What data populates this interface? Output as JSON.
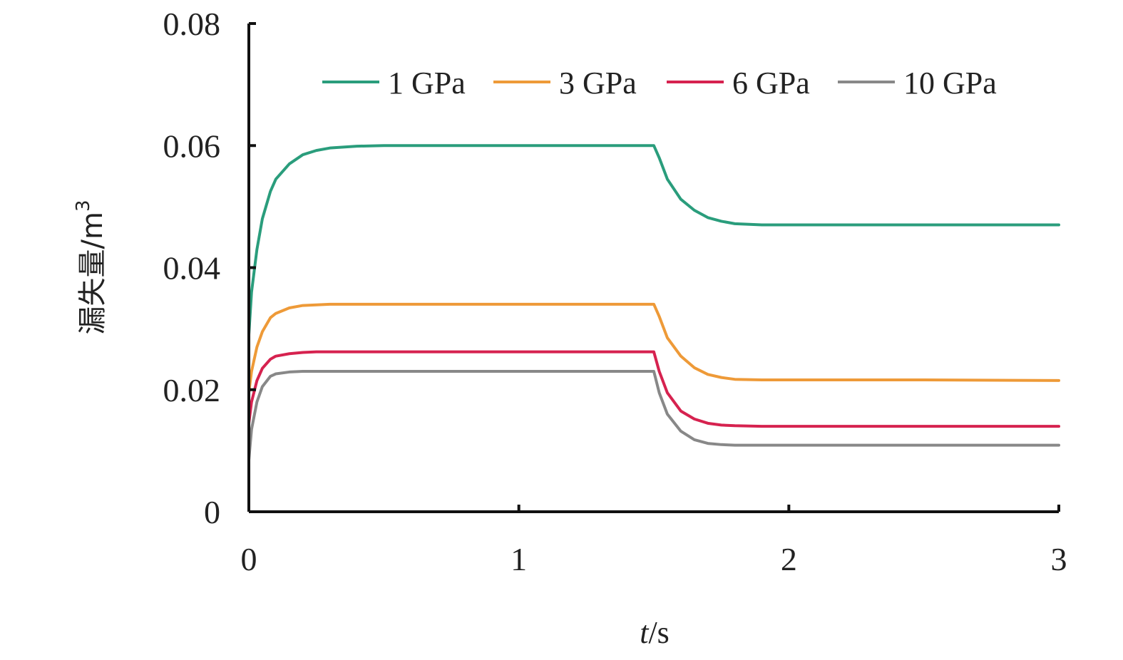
{
  "chart_data": {
    "type": "line",
    "xlabel_italic": "t",
    "xlabel_unit": "/s",
    "ylabel_text": "漏失量/m",
    "ylabel_sup": "3",
    "xlim": [
      0,
      3
    ],
    "ylim": [
      0,
      0.08
    ],
    "xticks": [
      0,
      1,
      2,
      3
    ],
    "xtick_labels": [
      "0",
      "1",
      "2",
      "3"
    ],
    "yticks": [
      0,
      0.02,
      0.04,
      0.06,
      0.08
    ],
    "ytick_labels": [
      "0",
      "0.02",
      "0.04",
      "0.06",
      "0.08"
    ],
    "grid": false,
    "legend_position": "top",
    "x": [
      0,
      0.01,
      0.03,
      0.05,
      0.08,
      0.1,
      0.15,
      0.2,
      0.25,
      0.3,
      0.4,
      0.5,
      0.75,
      1.0,
      1.25,
      1.5,
      1.52,
      1.55,
      1.6,
      1.65,
      1.7,
      1.75,
      1.8,
      1.9,
      2.0,
      2.5,
      3.0
    ],
    "series": [
      {
        "name": "1 GPa",
        "color": "#2a9d7c",
        "values": [
          0.029,
          0.036,
          0.043,
          0.048,
          0.0525,
          0.0545,
          0.057,
          0.0585,
          0.0592,
          0.0596,
          0.0599,
          0.06,
          0.06,
          0.06,
          0.06,
          0.06,
          0.058,
          0.0545,
          0.0512,
          0.0494,
          0.0482,
          0.0476,
          0.0472,
          0.047,
          0.047,
          0.047,
          0.047
        ]
      },
      {
        "name": "3 GPa",
        "color": "#ee9a38",
        "values": [
          0.0195,
          0.023,
          0.027,
          0.0295,
          0.0318,
          0.0325,
          0.0334,
          0.0338,
          0.0339,
          0.034,
          0.034,
          0.034,
          0.034,
          0.034,
          0.034,
          0.034,
          0.032,
          0.0285,
          0.0255,
          0.0236,
          0.0225,
          0.022,
          0.0217,
          0.0216,
          0.0216,
          0.0216,
          0.0215
        ]
      },
      {
        "name": "6 GPa",
        "color": "#d6224f",
        "values": [
          0.0145,
          0.018,
          0.0215,
          0.0235,
          0.025,
          0.0255,
          0.0259,
          0.0261,
          0.0262,
          0.0262,
          0.0262,
          0.0262,
          0.0262,
          0.0262,
          0.0262,
          0.0262,
          0.023,
          0.0195,
          0.0165,
          0.0152,
          0.0145,
          0.0142,
          0.0141,
          0.014,
          0.014,
          0.014,
          0.014
        ]
      },
      {
        "name": "10 GPa",
        "color": "#888888",
        "values": [
          0.0085,
          0.0135,
          0.018,
          0.0205,
          0.0222,
          0.0226,
          0.0229,
          0.023,
          0.023,
          0.023,
          0.023,
          0.023,
          0.023,
          0.023,
          0.023,
          0.023,
          0.0195,
          0.016,
          0.0132,
          0.0118,
          0.0112,
          0.011,
          0.0109,
          0.0109,
          0.0109,
          0.0109,
          0.0109
        ]
      }
    ]
  }
}
